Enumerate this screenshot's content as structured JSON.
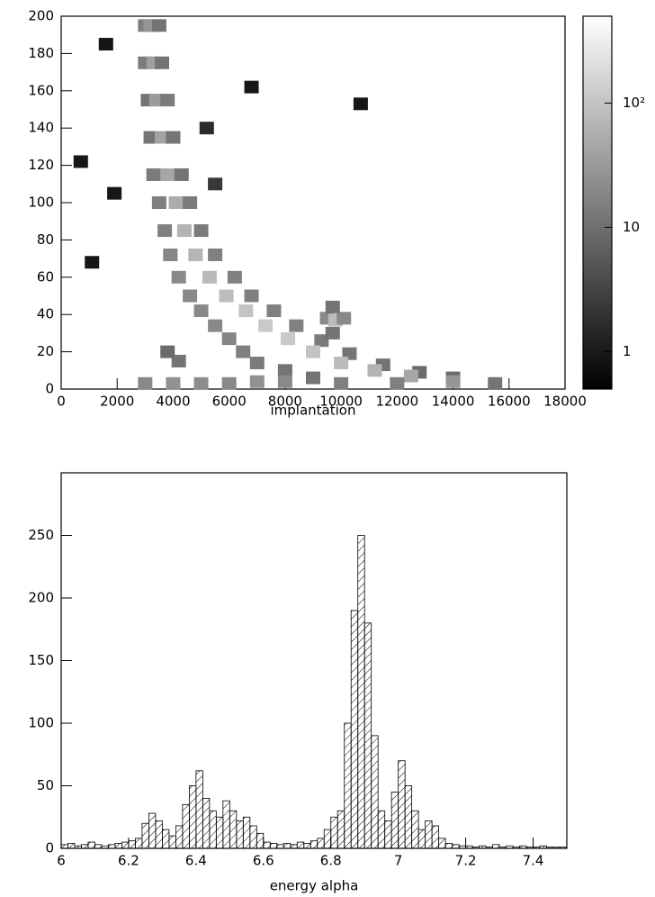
{
  "chart_data": [
    {
      "type": "heatmap",
      "xlabel": "implantation",
      "xlim": [
        0,
        18000
      ],
      "xticks": [
        0,
        2000,
        4000,
        6000,
        8000,
        10000,
        12000,
        14000,
        16000,
        18000
      ],
      "ylim": [
        0,
        200
      ],
      "yticks": [
        0,
        20,
        40,
        60,
        80,
        100,
        120,
        140,
        160,
        180,
        200
      ],
      "zlim": [
        0.5,
        500
      ],
      "zscale": "log",
      "zticks": [
        1,
        10,
        {
          "value": 100,
          "label": "10²"
        }
      ],
      "colors": [
        "#000000",
        "#ffffff"
      ],
      "x": [
        3000,
        3200,
        3500,
        3000,
        3300,
        3600,
        3100,
        3400,
        3800,
        3200,
        3600,
        4000,
        3300,
        3800,
        4300,
        3500,
        4100,
        4600,
        3700,
        4400,
        5000,
        3900,
        4800,
        5500,
        4200,
        5300,
        6200,
        4600,
        5900,
        6800,
        5000,
        6600,
        7600,
        5500,
        7300,
        8400,
        6000,
        8100,
        9300,
        6500,
        9000,
        10300,
        7000,
        10000,
        11500,
        8000,
        11200,
        12800,
        9000,
        12500,
        14000,
        10000,
        14000,
        15500,
        9500,
        9800,
        10100,
        9700,
        9700,
        3000,
        4000,
        5000,
        6000,
        7000,
        8000,
        12000,
        4200,
        3800,
        700,
        1100,
        1600,
        1900,
        6800,
        10700,
        5200,
        5500
      ],
      "y": [
        195,
        195,
        195,
        175,
        175,
        175,
        155,
        155,
        155,
        135,
        135,
        135,
        115,
        115,
        115,
        100,
        100,
        100,
        85,
        85,
        85,
        72,
        72,
        72,
        60,
        60,
        60,
        50,
        50,
        50,
        42,
        42,
        42,
        34,
        34,
        34,
        27,
        27,
        26,
        20,
        20,
        19,
        14,
        14,
        13,
        10,
        10,
        9,
        6,
        7,
        6,
        3,
        4,
        3,
        38,
        37,
        38,
        44,
        30,
        3,
        3,
        3,
        3,
        4,
        4,
        3,
        15,
        20,
        122,
        68,
        185,
        105,
        162,
        153,
        140,
        110
      ],
      "values": [
        30,
        60,
        20,
        25,
        80,
        20,
        20,
        70,
        25,
        20,
        90,
        20,
        25,
        100,
        20,
        30,
        120,
        25,
        30,
        150,
        25,
        35,
        160,
        30,
        40,
        180,
        30,
        40,
        200,
        30,
        40,
        250,
        30,
        40,
        300,
        30,
        35,
        300,
        25,
        30,
        250,
        20,
        25,
        200,
        20,
        20,
        150,
        15,
        20,
        100,
        15,
        30,
        60,
        20,
        40,
        200,
        40,
        20,
        20,
        40,
        50,
        45,
        40,
        50,
        40,
        30,
        20,
        15,
        1,
        1,
        1,
        1,
        1,
        1,
        2,
        3
      ]
    },
    {
      "type": "histogram",
      "xlabel": "energy alpha",
      "color": "#000000",
      "fill": "hatch",
      "xlim": [
        6,
        7.5
      ],
      "xticks": [
        6,
        6.2,
        6.4,
        6.6,
        6.8,
        7,
        7.2,
        7.4
      ],
      "ylim": [
        0,
        300
      ],
      "yticks": [
        0,
        50,
        100,
        150,
        200,
        250
      ],
      "bins": [
        6.0,
        6.02,
        6.04,
        6.06,
        6.08,
        6.1,
        6.12,
        6.14,
        6.16,
        6.18,
        6.2,
        6.22,
        6.24,
        6.26,
        6.28,
        6.3,
        6.32,
        6.34,
        6.36,
        6.38,
        6.4,
        6.42,
        6.44,
        6.46,
        6.48,
        6.5,
        6.52,
        6.54,
        6.56,
        6.58,
        6.6,
        6.62,
        6.64,
        6.66,
        6.68,
        6.7,
        6.72,
        6.74,
        6.76,
        6.78,
        6.8,
        6.82,
        6.84,
        6.86,
        6.88,
        6.9,
        6.92,
        6.94,
        6.96,
        6.98,
        7.0,
        7.02,
        7.04,
        7.06,
        7.08,
        7.1,
        7.12,
        7.14,
        7.16,
        7.18,
        7.2,
        7.22,
        7.24,
        7.26,
        7.28,
        7.3,
        7.32,
        7.34,
        7.36,
        7.38,
        7.4,
        7.42,
        7.44,
        7.46,
        7.48,
        7.5
      ],
      "values": [
        3,
        4,
        2,
        3,
        5,
        3,
        2,
        3,
        4,
        5,
        6,
        8,
        20,
        28,
        22,
        15,
        10,
        18,
        35,
        50,
        62,
        40,
        30,
        25,
        38,
        30,
        22,
        25,
        18,
        12,
        5,
        4,
        3,
        4,
        3,
        5,
        4,
        6,
        8,
        15,
        25,
        30,
        100,
        190,
        250,
        180,
        90,
        30,
        22,
        45,
        70,
        50,
        30,
        15,
        22,
        18,
        8,
        4,
        3,
        2,
        2,
        1,
        2,
        1,
        3,
        1,
        2,
        1,
        2,
        1,
        1,
        2,
        1,
        1,
        1
      ]
    }
  ]
}
